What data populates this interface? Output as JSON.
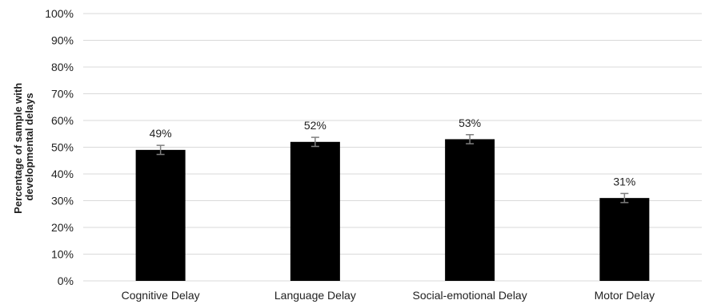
{
  "chart_data": {
    "type": "bar",
    "title": "",
    "xlabel": "",
    "ylabel": [
      "Percentage of sample with",
      "developmental delays"
    ],
    "categories": [
      "Cognitive Delay",
      "Language Delay",
      "Social-emotional Delay",
      "Motor Delay"
    ],
    "values": [
      49,
      52,
      53,
      31
    ],
    "data_labels": [
      "49%",
      "52%",
      "53%",
      "31%"
    ],
    "error_bars": [
      1.7,
      1.7,
      1.7,
      1.7
    ],
    "ylim": [
      0,
      100
    ],
    "yticks": [
      0,
      10,
      20,
      30,
      40,
      50,
      60,
      70,
      80,
      90,
      100
    ],
    "ytick_labels": [
      "0%",
      "10%",
      "20%",
      "30%",
      "40%",
      "50%",
      "60%",
      "70%",
      "80%",
      "90%",
      "100%"
    ],
    "grid": true,
    "legend": "none",
    "colors": {
      "bar": "#000000",
      "grid": "#d9d9d9",
      "error_bar": "#7f7f7f"
    }
  }
}
